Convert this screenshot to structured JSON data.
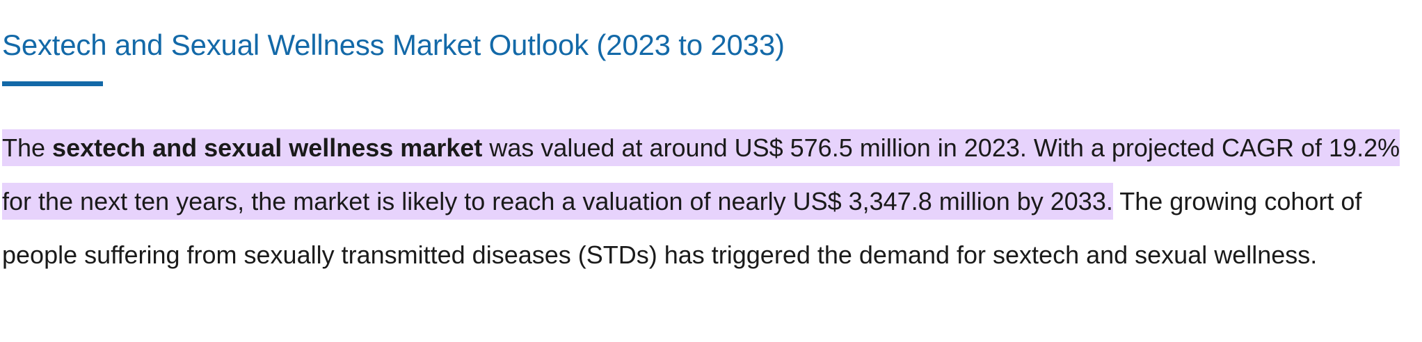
{
  "heading": {
    "title": "Sextech and Sexual Wellness Market Outlook (2023 to 2033)"
  },
  "paragraph": {
    "lead": "The ",
    "bold_term": "sextech and sexual wellness market",
    "highlighted_rest": " was valued at around US$ 576.5 million in 2023. With a projected CAGR of 19.2% for the next ten years, the market is likely to reach a valuation of nearly US$ 3,347.8 million by 2033.",
    "plain_text": " The growing cohort of people suffering from sexually transmitted diseases (STDs) has triggered the demand for sextech and sexual wellness."
  },
  "colors": {
    "heading": "#1369a8",
    "underline": "#1369a8",
    "highlight": "#e7d3fc",
    "body_text": "#1a1a1a"
  }
}
